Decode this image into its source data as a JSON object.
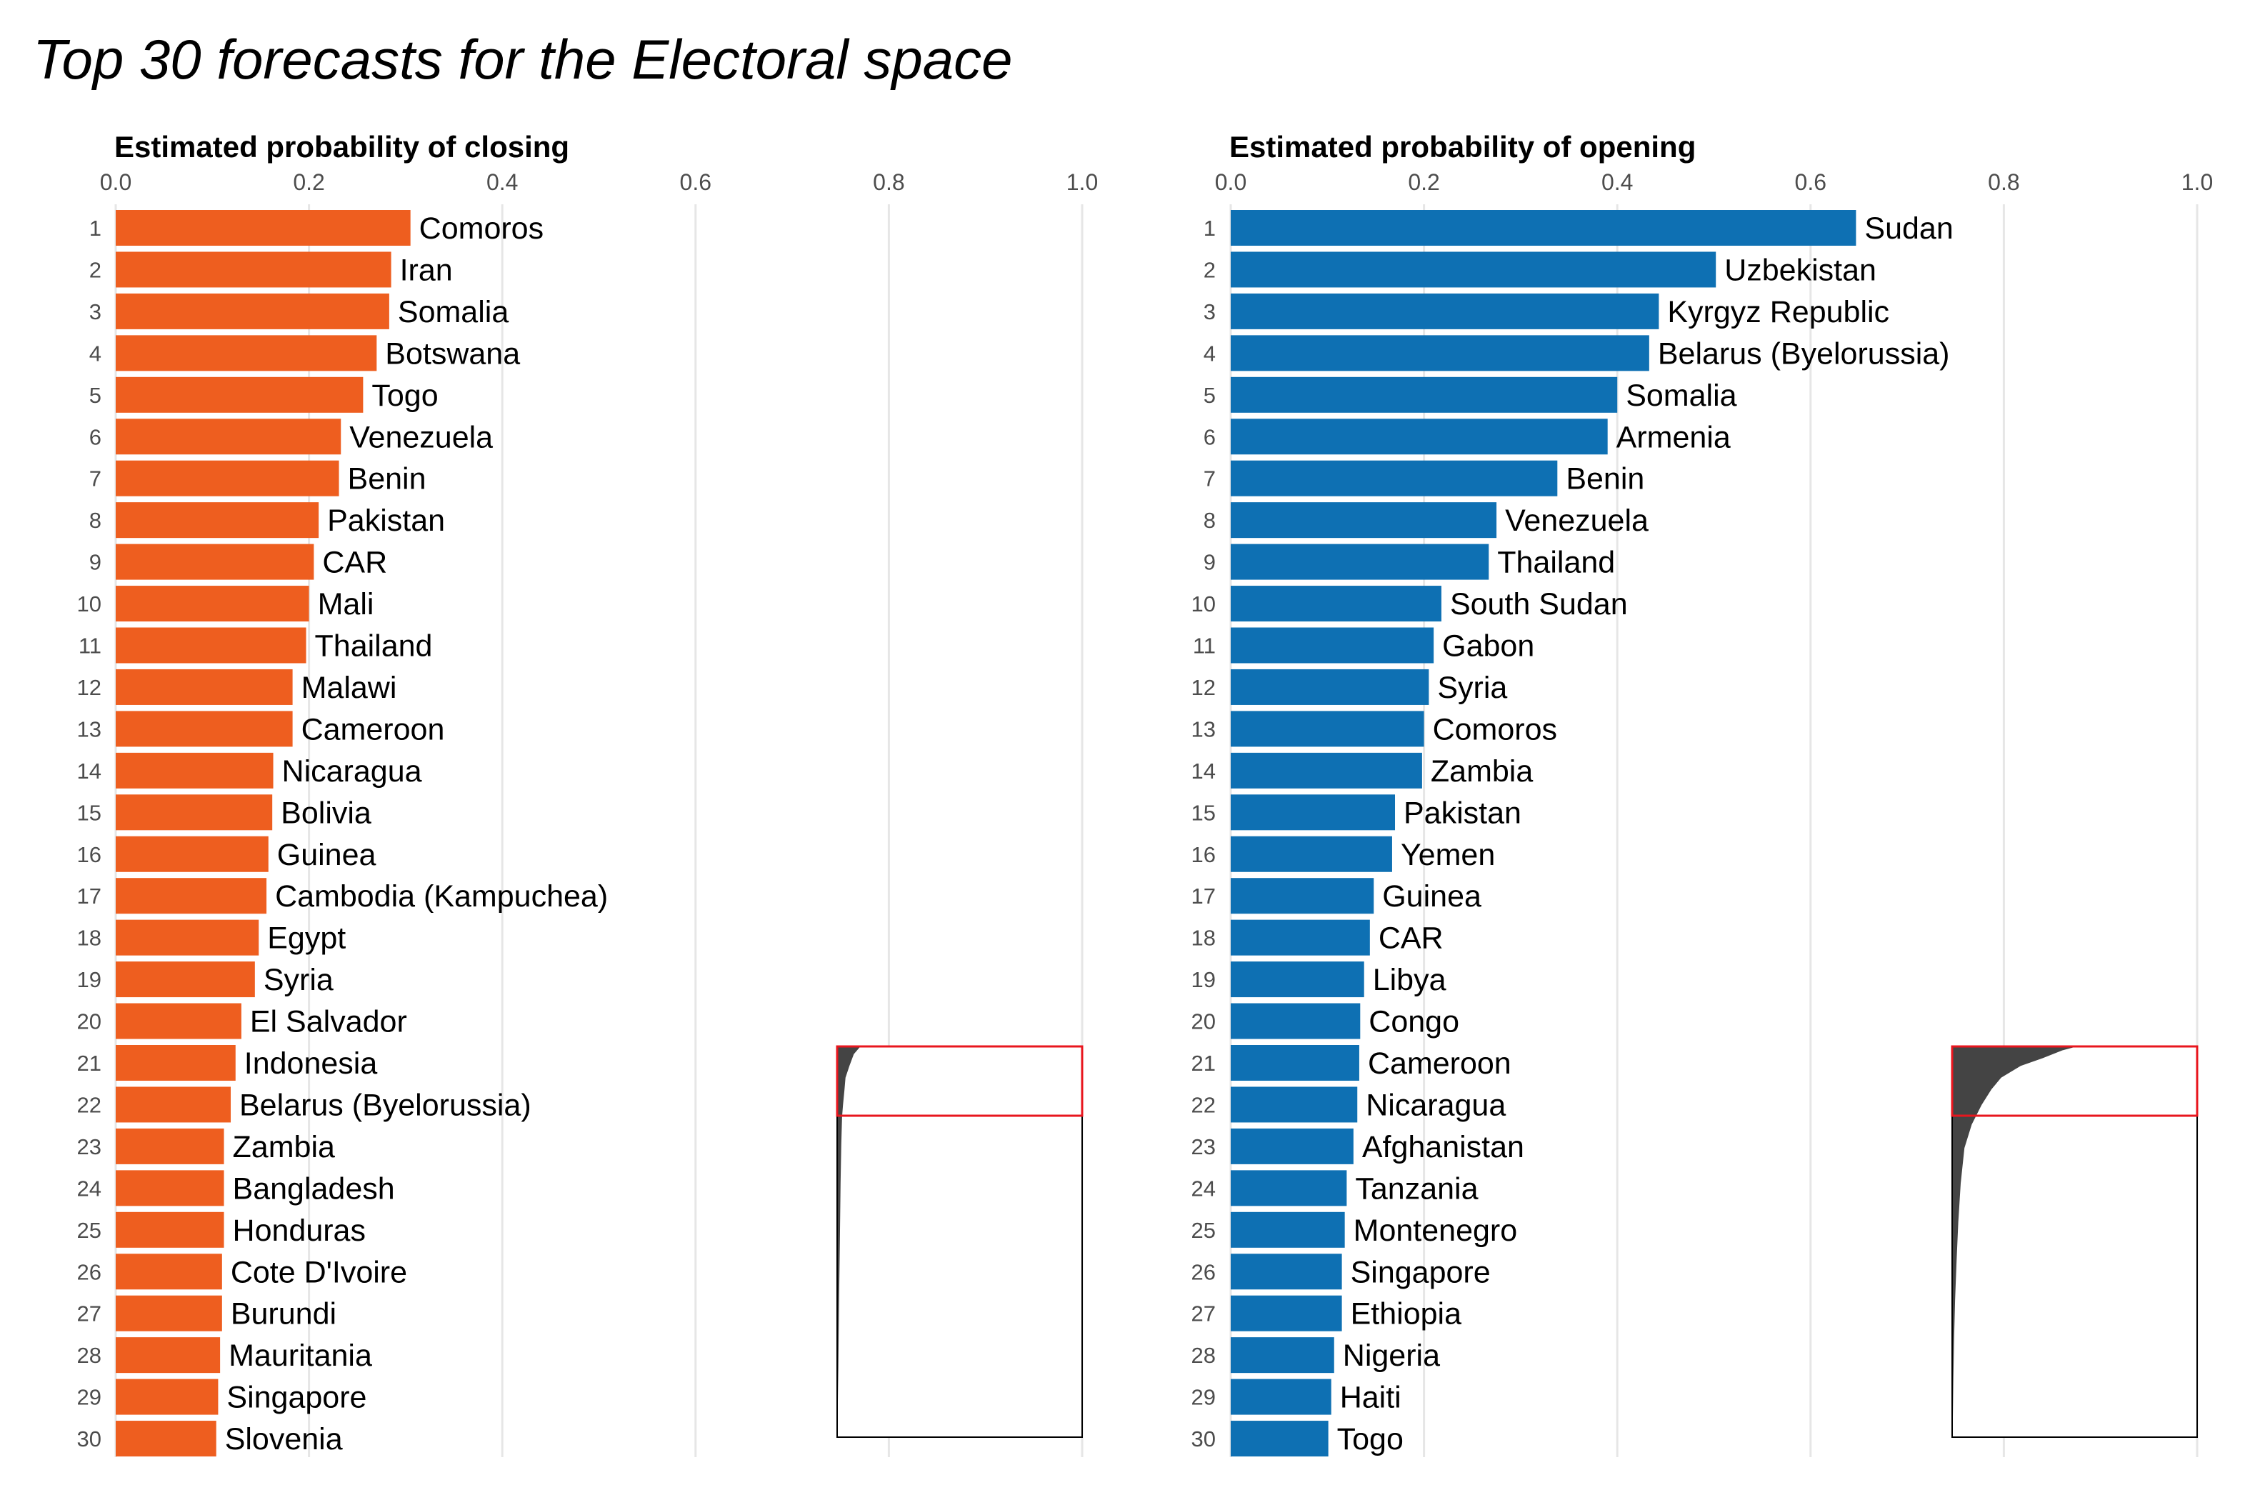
{
  "title": "Top 30 forecasts for the Electoral space",
  "colors": {
    "closing": "#EE5E1F",
    "opening": "#0E70B3",
    "grid": "#E6E6E6",
    "inset_bars": "#444444",
    "inset_highlight": "#E8161E"
  },
  "chart_data": [
    {
      "type": "bar",
      "orientation": "horizontal",
      "title": "Estimated probability of closing",
      "xlim": [
        0,
        1.0
      ],
      "ticks": [
        "0.0",
        "0.2",
        "0.4",
        "0.6",
        "0.8",
        "1.0"
      ],
      "grid": true,
      "ranks": [
        "1",
        "2",
        "3",
        "4",
        "5",
        "6",
        "7",
        "8",
        "9",
        "10",
        "11",
        "12",
        "13",
        "14",
        "15",
        "16",
        "17",
        "18",
        "19",
        "20",
        "21",
        "22",
        "23",
        "24",
        "25",
        "26",
        "27",
        "28",
        "29",
        "30"
      ],
      "categories": [
        "Comoros",
        "Iran",
        "Somalia",
        "Botswana",
        "Togo",
        "Venezuela",
        "Benin",
        "Pakistan",
        "CAR",
        "Mali",
        "Thailand",
        "Malawi",
        "Cameroon",
        "Nicaragua",
        "Bolivia",
        "Guinea",
        "Cambodia (Kampuchea)",
        "Egypt",
        "Syria",
        "El Salvador",
        "Indonesia",
        "Belarus (Byelorussia)",
        "Zambia",
        "Bangladesh",
        "Honduras",
        "Cote D'Ivoire",
        "Burundi",
        "Mauritania",
        "Singapore",
        "Slovenia"
      ],
      "values": [
        0.305,
        0.285,
        0.283,
        0.27,
        0.256,
        0.233,
        0.231,
        0.21,
        0.205,
        0.2,
        0.197,
        0.183,
        0.183,
        0.163,
        0.162,
        0.158,
        0.156,
        0.148,
        0.144,
        0.13,
        0.124,
        0.119,
        0.112,
        0.112,
        0.112,
        0.11,
        0.11,
        0.108,
        0.106,
        0.104
      ],
      "inset_profile": [
        [
          0,
          0.095
        ],
        [
          0.02,
          0.068
        ],
        [
          0.05,
          0.05
        ],
        [
          0.08,
          0.034
        ],
        [
          0.11,
          0.03
        ],
        [
          0.15,
          0.024
        ],
        [
          0.18,
          0.02
        ],
        [
          0.25,
          0.017
        ],
        [
          0.35,
          0.014
        ],
        [
          0.5,
          0.011
        ],
        [
          0.65,
          0.008
        ],
        [
          0.75,
          0.006
        ],
        [
          0.82,
          0.005
        ],
        [
          0.88,
          0.0035
        ],
        [
          0.95,
          0.002
        ],
        [
          1.0,
          0.0015
        ]
      ]
    },
    {
      "type": "bar",
      "orientation": "horizontal",
      "title": "Estimated probability of opening",
      "xlim": [
        0,
        1.0
      ],
      "ticks": [
        "0.0",
        "0.2",
        "0.4",
        "0.6",
        "0.8",
        "1.0"
      ],
      "grid": true,
      "ranks": [
        "1",
        "2",
        "3",
        "4",
        "5",
        "6",
        "7",
        "8",
        "9",
        "10",
        "11",
        "12",
        "13",
        "14",
        "15",
        "16",
        "17",
        "18",
        "19",
        "20",
        "21",
        "22",
        "23",
        "24",
        "25",
        "26",
        "27",
        "28",
        "29",
        "30"
      ],
      "categories": [
        "Sudan",
        "Uzbekistan",
        "Kyrgyz Republic",
        "Belarus (Byelorussia)",
        "Somalia",
        "Armenia",
        "Benin",
        "Venezuela",
        "Thailand",
        "South Sudan",
        "Gabon",
        "Syria",
        "Comoros",
        "Zambia",
        "Pakistan",
        "Yemen",
        "Guinea",
        "CAR",
        "Libya",
        "Congo",
        "Cameroon",
        "Nicaragua",
        "Afghanistan",
        "Tanzania",
        "Montenegro",
        "Singapore",
        "Ethiopia",
        "Nigeria",
        "Haiti",
        "Togo"
      ],
      "values": [
        0.647,
        0.502,
        0.443,
        0.433,
        0.4,
        0.39,
        0.338,
        0.275,
        0.267,
        0.218,
        0.21,
        0.205,
        0.2,
        0.198,
        0.17,
        0.167,
        0.148,
        0.144,
        0.138,
        0.134,
        0.133,
        0.131,
        0.127,
        0.12,
        0.118,
        0.115,
        0.115,
        0.107,
        0.104,
        0.101
      ],
      "inset_profile": [
        [
          0,
          0.51
        ],
        [
          0.01,
          0.45
        ],
        [
          0.03,
          0.37
        ],
        [
          0.05,
          0.28
        ],
        [
          0.08,
          0.2
        ],
        [
          0.11,
          0.16
        ],
        [
          0.15,
          0.12
        ],
        [
          0.2,
          0.08
        ],
        [
          0.26,
          0.05
        ],
        [
          0.35,
          0.035
        ],
        [
          0.45,
          0.025
        ],
        [
          0.55,
          0.018
        ],
        [
          0.65,
          0.012
        ],
        [
          0.75,
          0.008
        ],
        [
          0.85,
          0.005
        ],
        [
          0.95,
          0.003
        ],
        [
          1.0,
          0.002
        ]
      ]
    }
  ]
}
